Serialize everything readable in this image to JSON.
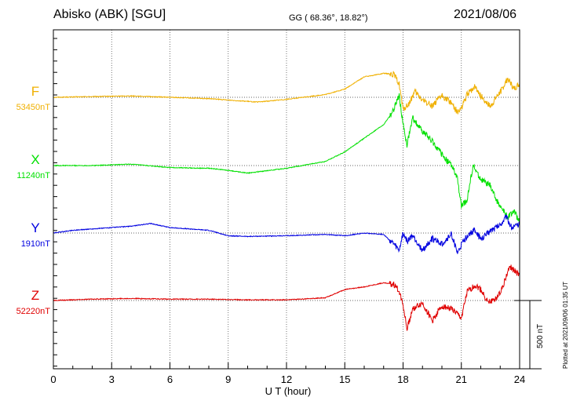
{
  "header": {
    "station": "Abisko (ABK)  [SGU]",
    "coords": "GG ( 68.36°,  18.82°)",
    "date": "2021/08/06"
  },
  "side_note": "Plotted at 2021/09/06 01:35 UT",
  "scale_label": "500 nT",
  "colors": {
    "F": "#f0b000",
    "X": "#00e000",
    "Y": "#0000e0",
    "Z": "#e00000"
  },
  "chart_data": {
    "type": "line",
    "title": "Abisko (ABK)  [SGU]",
    "xlabel": "U T (hour)",
    "ylabel": "",
    "xlim": [
      0,
      24
    ],
    "xticks": [
      "0",
      "3",
      "6",
      "9",
      "12",
      "15",
      "18",
      "21",
      "24"
    ],
    "grid": true,
    "scale_bar_nT": 500,
    "series": [
      {
        "name": "F",
        "baseline_label": "53450nT",
        "baseline": 53450,
        "hours": [
          0,
          2,
          4,
          6,
          8,
          9,
          10.5,
          12,
          14,
          15,
          16,
          17,
          17.5,
          17.8,
          18.0,
          18.3,
          18.6,
          19.0,
          19.5,
          20.0,
          20.5,
          20.8,
          21.0,
          21.3,
          21.7,
          22.0,
          22.5,
          22.8,
          23.1,
          23.4,
          23.7,
          24
        ],
        "values": [
          0,
          5,
          10,
          0,
          -10,
          -20,
          -35,
          -15,
          20,
          60,
          150,
          175,
          170,
          100,
          -90,
          -50,
          40,
          -20,
          -60,
          10,
          -40,
          -110,
          -80,
          20,
          80,
          10,
          -70,
          0,
          60,
          140,
          60,
          100
        ]
      },
      {
        "name": "X",
        "baseline_label": "11240nT",
        "baseline": 11240,
        "hours": [
          0,
          2,
          4,
          6,
          8,
          9,
          10,
          12,
          14,
          15,
          16,
          17,
          17.5,
          17.8,
          18.0,
          18.2,
          18.5,
          19,
          19.5,
          20,
          20.5,
          20.8,
          21.0,
          21.3,
          21.6,
          22,
          22.5,
          22.8,
          23.1,
          23.4,
          23.7,
          24
        ],
        "values": [
          0,
          0,
          10,
          -15,
          -20,
          -35,
          -55,
          -20,
          30,
          100,
          200,
          300,
          400,
          520,
          300,
          150,
          350,
          250,
          180,
          80,
          0,
          -100,
          -300,
          -250,
          0,
          -100,
          -150,
          -250,
          -320,
          -380,
          -330,
          -420
        ]
      },
      {
        "name": "Y",
        "baseline_label": "1910nT",
        "baseline": 1910,
        "hours": [
          0,
          1,
          2,
          3,
          4,
          5,
          6,
          7,
          8,
          9,
          10,
          12,
          14,
          15,
          16,
          17,
          17.5,
          17.8,
          18.0,
          18.2,
          18.5,
          19.0,
          19.5,
          20.0,
          20.5,
          20.8,
          21.0,
          21.3,
          21.7,
          22.0,
          22.5,
          23.0,
          23.3,
          23.6,
          24
        ],
        "values": [
          0,
          20,
          30,
          40,
          50,
          70,
          40,
          30,
          20,
          -20,
          -25,
          -20,
          -10,
          -20,
          0,
          -10,
          -80,
          -130,
          0,
          -60,
          -20,
          -130,
          -40,
          -80,
          -10,
          -150,
          -90,
          -20,
          20,
          -50,
          20,
          60,
          120,
          40,
          60
        ]
      },
      {
        "name": "Z",
        "baseline_label": "52220nT",
        "baseline": 52220,
        "hours": [
          0,
          2,
          4,
          6,
          8,
          10,
          12,
          14,
          15,
          16,
          17,
          17.5,
          17.8,
          18.0,
          18.2,
          18.5,
          19.0,
          19.5,
          20.0,
          20.5,
          21.0,
          21.3,
          21.7,
          22.0,
          22.4,
          22.8,
          23.1,
          23.5,
          24
        ],
        "values": [
          0,
          10,
          15,
          10,
          10,
          5,
          5,
          20,
          80,
          100,
          130,
          120,
          70,
          -30,
          -210,
          -60,
          -20,
          -150,
          -40,
          -60,
          -130,
          60,
          110,
          80,
          -20,
          20,
          90,
          250,
          180
        ]
      }
    ]
  }
}
